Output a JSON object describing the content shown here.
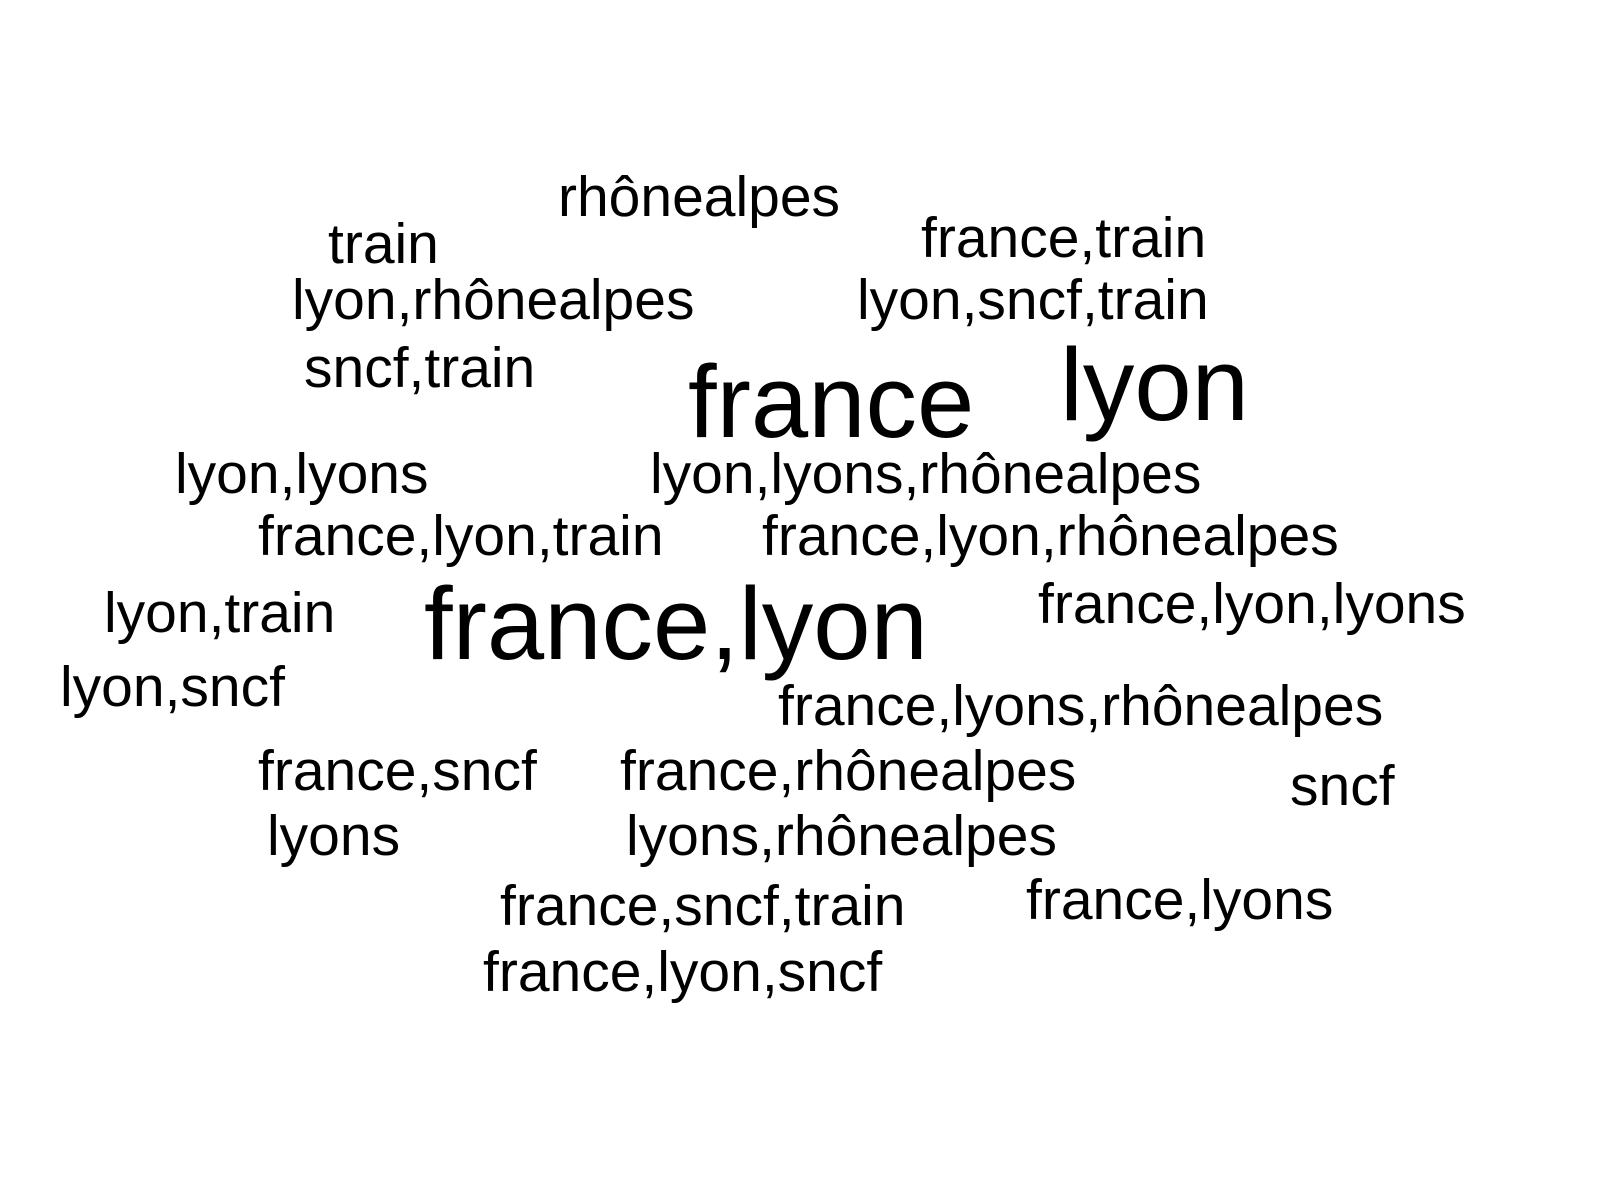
{
  "words": [
    {
      "text": "rhônealpes",
      "weight": 1
    },
    {
      "text": "train",
      "weight": 1
    },
    {
      "text": "france,train",
      "weight": 1
    },
    {
      "text": "lyon,rhônealpes",
      "weight": 1
    },
    {
      "text": "lyon,sncf,train",
      "weight": 1
    },
    {
      "text": "sncf,train",
      "weight": 1
    },
    {
      "text": "france",
      "weight": 3
    },
    {
      "text": "lyon",
      "weight": 3
    },
    {
      "text": "lyon,lyons",
      "weight": 1
    },
    {
      "text": "lyon,lyons,rhônealpes",
      "weight": 1
    },
    {
      "text": "france,lyon,train",
      "weight": 1
    },
    {
      "text": "france,lyon,rhônealpes",
      "weight": 1
    },
    {
      "text": "lyon,train",
      "weight": 1
    },
    {
      "text": "france,lyon",
      "weight": 3
    },
    {
      "text": "france,lyon,lyons",
      "weight": 1
    },
    {
      "text": "lyon,sncf",
      "weight": 1
    },
    {
      "text": "france,lyons,rhônealpes",
      "weight": 1
    },
    {
      "text": "france,sncf",
      "weight": 1
    },
    {
      "text": "france,rhônealpes",
      "weight": 1
    },
    {
      "text": "sncf",
      "weight": 1
    },
    {
      "text": "lyons",
      "weight": 1
    },
    {
      "text": "lyons,rhônealpes",
      "weight": 1
    },
    {
      "text": "france,sncf,train",
      "weight": 1
    },
    {
      "text": "france,lyons",
      "weight": 1
    },
    {
      "text": "france,lyon,sncf",
      "weight": 1
    }
  ]
}
